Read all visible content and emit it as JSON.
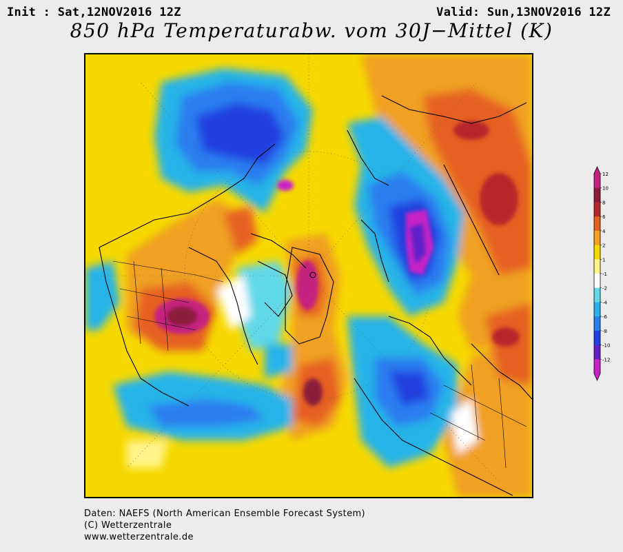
{
  "header": {
    "init": "Init : Sat,12NOV2016 12Z",
    "valid": "Valid: Sun,13NOV2016 12Z",
    "title": "850 hPa Temperaturabw. vom 30J−Mittel (K)"
  },
  "legend": {
    "labels": [
      "12",
      "10",
      "8",
      "6",
      "4",
      "2",
      "1",
      "-1",
      "-2",
      "-4",
      "-6",
      "-8",
      "-10",
      "-12"
    ],
    "colors": [
      "#c4207e",
      "#8c1c3a",
      "#b8282c",
      "#e66020",
      "#f0a020",
      "#f5d800",
      "#fff48a",
      "#ffffff",
      "#60d8e8",
      "#28b4e8",
      "#2c7ef0",
      "#2040e0",
      "#6020c8",
      "#c820c8"
    ]
  },
  "footer": {
    "line1": "Daten: NAEFS (North American Ensemble Forecast System)",
    "line2": "(C) Wetterzentrale",
    "line3": "www.wetterzentrale.de"
  }
}
